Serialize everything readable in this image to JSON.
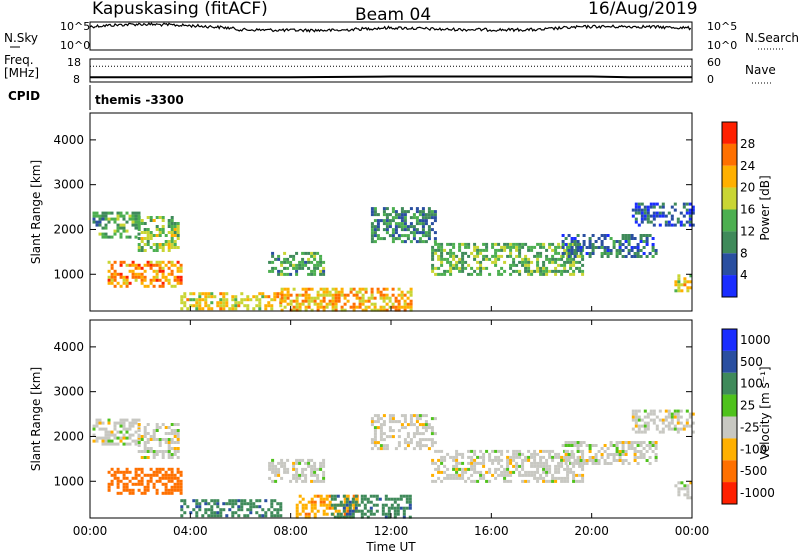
{
  "header": {
    "station": "Kapuskasing (fitACF)",
    "beam": "Beam 04",
    "date": "16/Aug/2019"
  },
  "top_panel": {
    "left_label": "N.Sky",
    "right_label": "N.Search",
    "left_ticks": [
      "10^5",
      "10^0"
    ],
    "right_ticks": [
      "10^5",
      "10^0"
    ]
  },
  "freq_panel": {
    "left_label_1": "Freq.",
    "left_label_2": "[MHz]",
    "cpid_label": "CPID",
    "right_label": "Nave",
    "left_ticks": [
      "18",
      "8"
    ],
    "right_ticks": [
      "60",
      "0"
    ]
  },
  "cpid_text": "themis -3300",
  "power_panel": {
    "ylabel": "Slant Range [km]",
    "yticks": [
      "1000",
      "2000",
      "3000",
      "4000"
    ],
    "colorbar_label": "Power [dB]",
    "colorbar_ticks": [
      "4",
      "8",
      "12",
      "16",
      "20",
      "24",
      "28"
    ],
    "colors": [
      "#1a2dff",
      "#2a4fa0",
      "#3f8a5a",
      "#4caf50",
      "#c9d534",
      "#ffb000",
      "#ff7000",
      "#ff2000"
    ]
  },
  "velocity_panel": {
    "ylabel": "Slant Range [km]",
    "yticks": [
      "1000",
      "2000",
      "3000",
      "4000"
    ],
    "colorbar_label": "Velocity [m s⁻¹]",
    "colorbar_ticks": [
      "1000",
      "500",
      "100",
      "25",
      "-25",
      "-100",
      "-500",
      "-1000"
    ],
    "colors": [
      "#1a2dff",
      "#2a4fa0",
      "#3f8a5a",
      "#4fc21c",
      "#c8c8c2",
      "#ffb000",
      "#ff7000",
      "#ff2000"
    ]
  },
  "xaxis": {
    "label": "Time UT",
    "ticks": [
      "00:00",
      "04:00",
      "08:00",
      "12:00",
      "16:00",
      "20:00",
      "00:00"
    ]
  },
  "chart_data": [
    {
      "type": "line",
      "title": "N.Sky / N.Search",
      "x_unit": "hours UT",
      "x": [
        0,
        2,
        4,
        6,
        8,
        10,
        12,
        14,
        16,
        18,
        20,
        22,
        24
      ],
      "series": [
        {
          "name": "N.Sky",
          "values": [
            20000,
            60000,
            30000,
            5000,
            4000,
            4000,
            12000,
            6000,
            5000,
            5000,
            20000,
            20000,
            10000
          ]
        },
        {
          "name": "N.Search",
          "values": [
            0,
            0,
            0,
            0,
            0,
            0,
            0,
            0,
            0,
            0,
            0,
            0,
            0
          ]
        }
      ],
      "ylim": [
        1,
        100000
      ],
      "yscale": "log"
    },
    {
      "type": "line",
      "title": "Freq / Nave",
      "x_unit": "hours UT",
      "x": [
        0,
        4,
        8,
        12,
        16,
        20,
        21.5,
        24
      ],
      "series": [
        {
          "name": "Freq",
          "values": [
            10.1,
            10.1,
            10.1,
            10.4,
            10.4,
            10.4,
            10.1,
            10.1
          ]
        },
        {
          "name": "Nave",
          "values": [
            41,
            41,
            41,
            41,
            41,
            41,
            41,
            41
          ]
        }
      ],
      "ylim": [
        8,
        18
      ]
    },
    {
      "type": "heatmap",
      "title": "Power",
      "x_unit": "hours UT",
      "xlim": [
        0,
        24
      ],
      "ylim": [
        180,
        4600
      ],
      "ylabel": "Slant Range [km]",
      "color_scale": [
        4,
        8,
        12,
        16,
        20,
        24,
        28
      ],
      "regions": [
        {
          "x": [
            0.1,
            1.9
          ],
          "y": [
            1850,
            2400
          ],
          "value": 12
        },
        {
          "x": [
            1.9,
            3.5
          ],
          "y": [
            1500,
            2300
          ],
          "value": 16
        },
        {
          "x": [
            0.7,
            3.6
          ],
          "y": [
            750,
            1300
          ],
          "value": 24
        },
        {
          "x": [
            3.6,
            7.6
          ],
          "y": [
            250,
            600
          ],
          "value": 20
        },
        {
          "x": [
            7.1,
            9.3
          ],
          "y": [
            1000,
            1500
          ],
          "value": 12
        },
        {
          "x": [
            7.6,
            12.8
          ],
          "y": [
            200,
            700
          ],
          "value": 22
        },
        {
          "x": [
            11.2,
            13.8
          ],
          "y": [
            1750,
            2500
          ],
          "value": 10
        },
        {
          "x": [
            13.6,
            19.6
          ],
          "y": [
            1000,
            1700
          ],
          "value": 14
        },
        {
          "x": [
            18.8,
            22.6
          ],
          "y": [
            1400,
            1900
          ],
          "value": 8
        },
        {
          "x": [
            21.6,
            24
          ],
          "y": [
            2100,
            2600
          ],
          "value": 6
        },
        {
          "x": [
            23.3,
            24
          ],
          "y": [
            600,
            1000
          ],
          "value": 20
        }
      ]
    },
    {
      "type": "heatmap",
      "title": "Velocity",
      "x_unit": "hours UT",
      "xlim": [
        0,
        24
      ],
      "ylim": [
        180,
        4600
      ],
      "ylabel": "Slant Range [km]",
      "color_scale": [
        1000,
        500,
        100,
        25,
        -25,
        -100,
        -500,
        -1000
      ],
      "regions": [
        {
          "x": [
            0.1,
            1.9
          ],
          "y": [
            1850,
            2400
          ],
          "value": 0
        },
        {
          "x": [
            1.9,
            3.5
          ],
          "y": [
            1500,
            2300
          ],
          "value": 0
        },
        {
          "x": [
            0.7,
            3.6
          ],
          "y": [
            750,
            1300
          ],
          "value": -300
        },
        {
          "x": [
            3.6,
            7.6
          ],
          "y": [
            250,
            600
          ],
          "value": 80
        },
        {
          "x": [
            7.1,
            9.3
          ],
          "y": [
            1000,
            1500
          ],
          "value": 0
        },
        {
          "x": [
            8.2,
            10.6
          ],
          "y": [
            200,
            700
          ],
          "value": -80
        },
        {
          "x": [
            9.6,
            12.8
          ],
          "y": [
            200,
            700
          ],
          "value": 80
        },
        {
          "x": [
            11.2,
            13.8
          ],
          "y": [
            1750,
            2500
          ],
          "value": 0
        },
        {
          "x": [
            13.6,
            19.6
          ],
          "y": [
            1000,
            1700
          ],
          "value": 0
        },
        {
          "x": [
            18.8,
            22.6
          ],
          "y": [
            1400,
            1900
          ],
          "value": 0
        },
        {
          "x": [
            21.6,
            24
          ],
          "y": [
            2100,
            2600
          ],
          "value": 0
        },
        {
          "x": [
            23.3,
            24
          ],
          "y": [
            600,
            1000
          ],
          "value": 0
        }
      ]
    }
  ]
}
